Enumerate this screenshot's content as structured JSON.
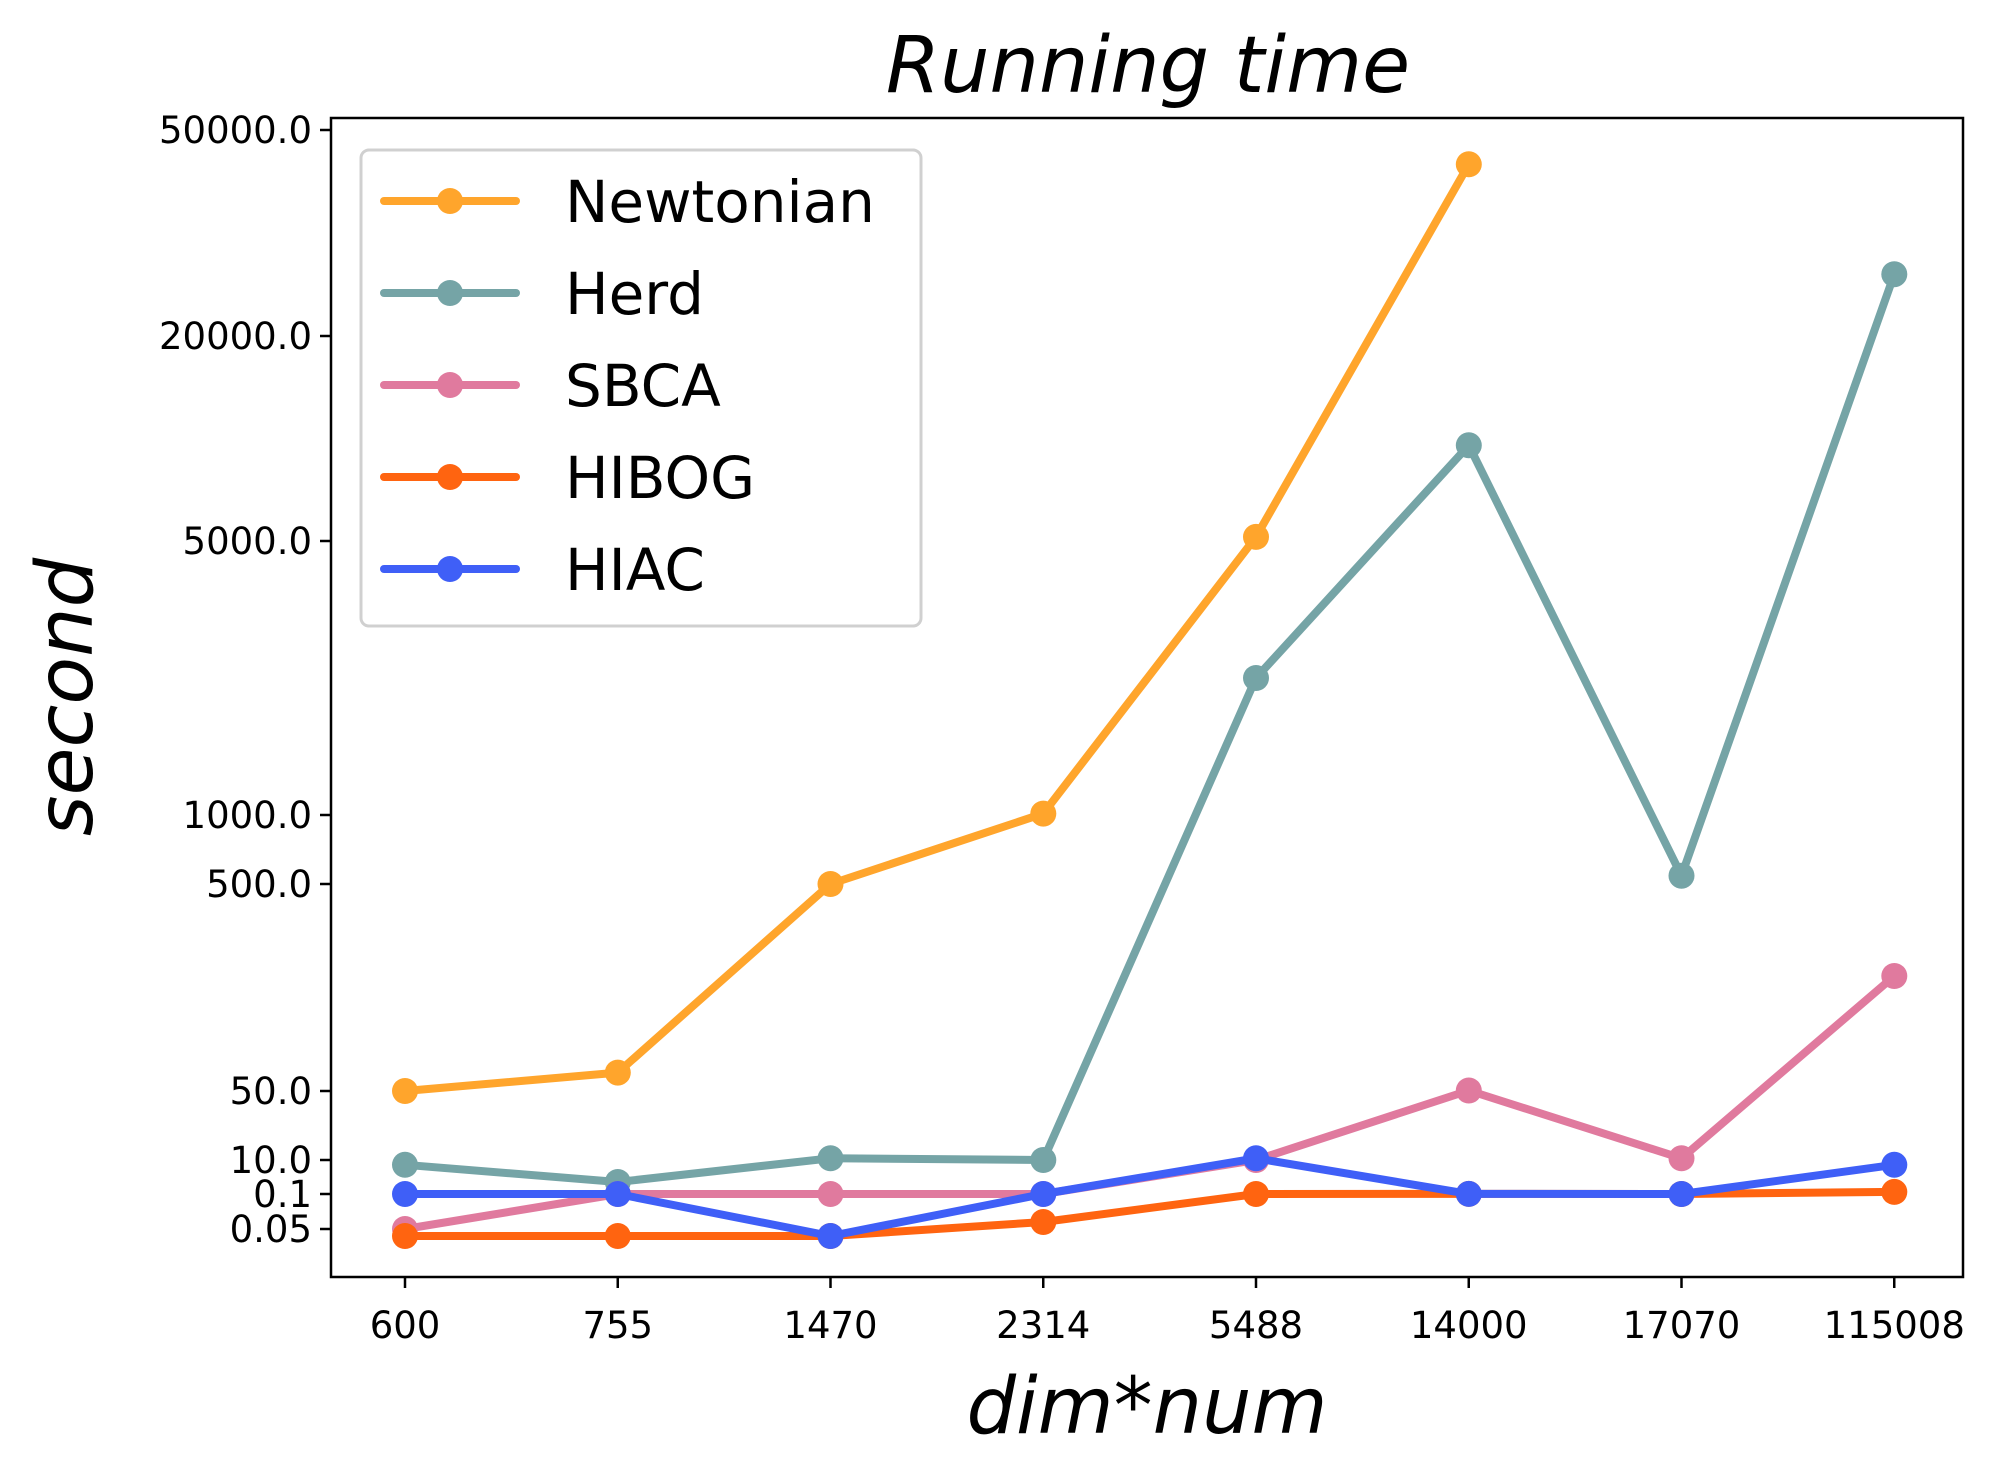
{
  "chart_data": {
    "type": "line",
    "title": "Running time",
    "xlabel": "dim*num",
    "ylabel": "second",
    "categories": [
      "600",
      "755",
      "1470",
      "2314",
      "5488",
      "14000",
      "17070",
      "115008"
    ],
    "yticks": [
      {
        "label": "50000.0"
      },
      {
        "label": "20000.0"
      },
      {
        "label": "5000.0"
      },
      {
        "label": "1000.0"
      },
      {
        "label": "500.0"
      },
      {
        "label": "50.0"
      },
      {
        "label": "10.0"
      },
      {
        "label": "0.1"
      },
      {
        "label": "0.05"
      }
    ],
    "series": [
      {
        "name": "Newtonian",
        "color": "#FFA52C",
        "values": [
          50,
          90,
          500,
          1020,
          5300,
          45000,
          null,
          null
        ]
      },
      {
        "name": "Herd",
        "color": "#75A4A6",
        "values": [
          8.6,
          3.6,
          11,
          10,
          3000,
          12000,
          560,
          29000
        ]
      },
      {
        "name": "SBCA",
        "color": "#E07A9E",
        "values": [
          0.05,
          0.1,
          0.11,
          0.11,
          10,
          51,
          11,
          300
        ]
      },
      {
        "name": "HIBOG",
        "color": "#FF6410",
        "values": [
          0.04,
          0.04,
          0.04,
          0.06,
          0.11,
          0.12,
          0.1,
          0.7
        ]
      },
      {
        "name": "HIAC",
        "color": "#3F5FF7",
        "values": [
          0.1,
          0.11,
          0.04,
          0.1,
          11,
          0.12,
          0.1,
          8.6
        ]
      }
    ],
    "legend": "top-left",
    "grid": false
  }
}
